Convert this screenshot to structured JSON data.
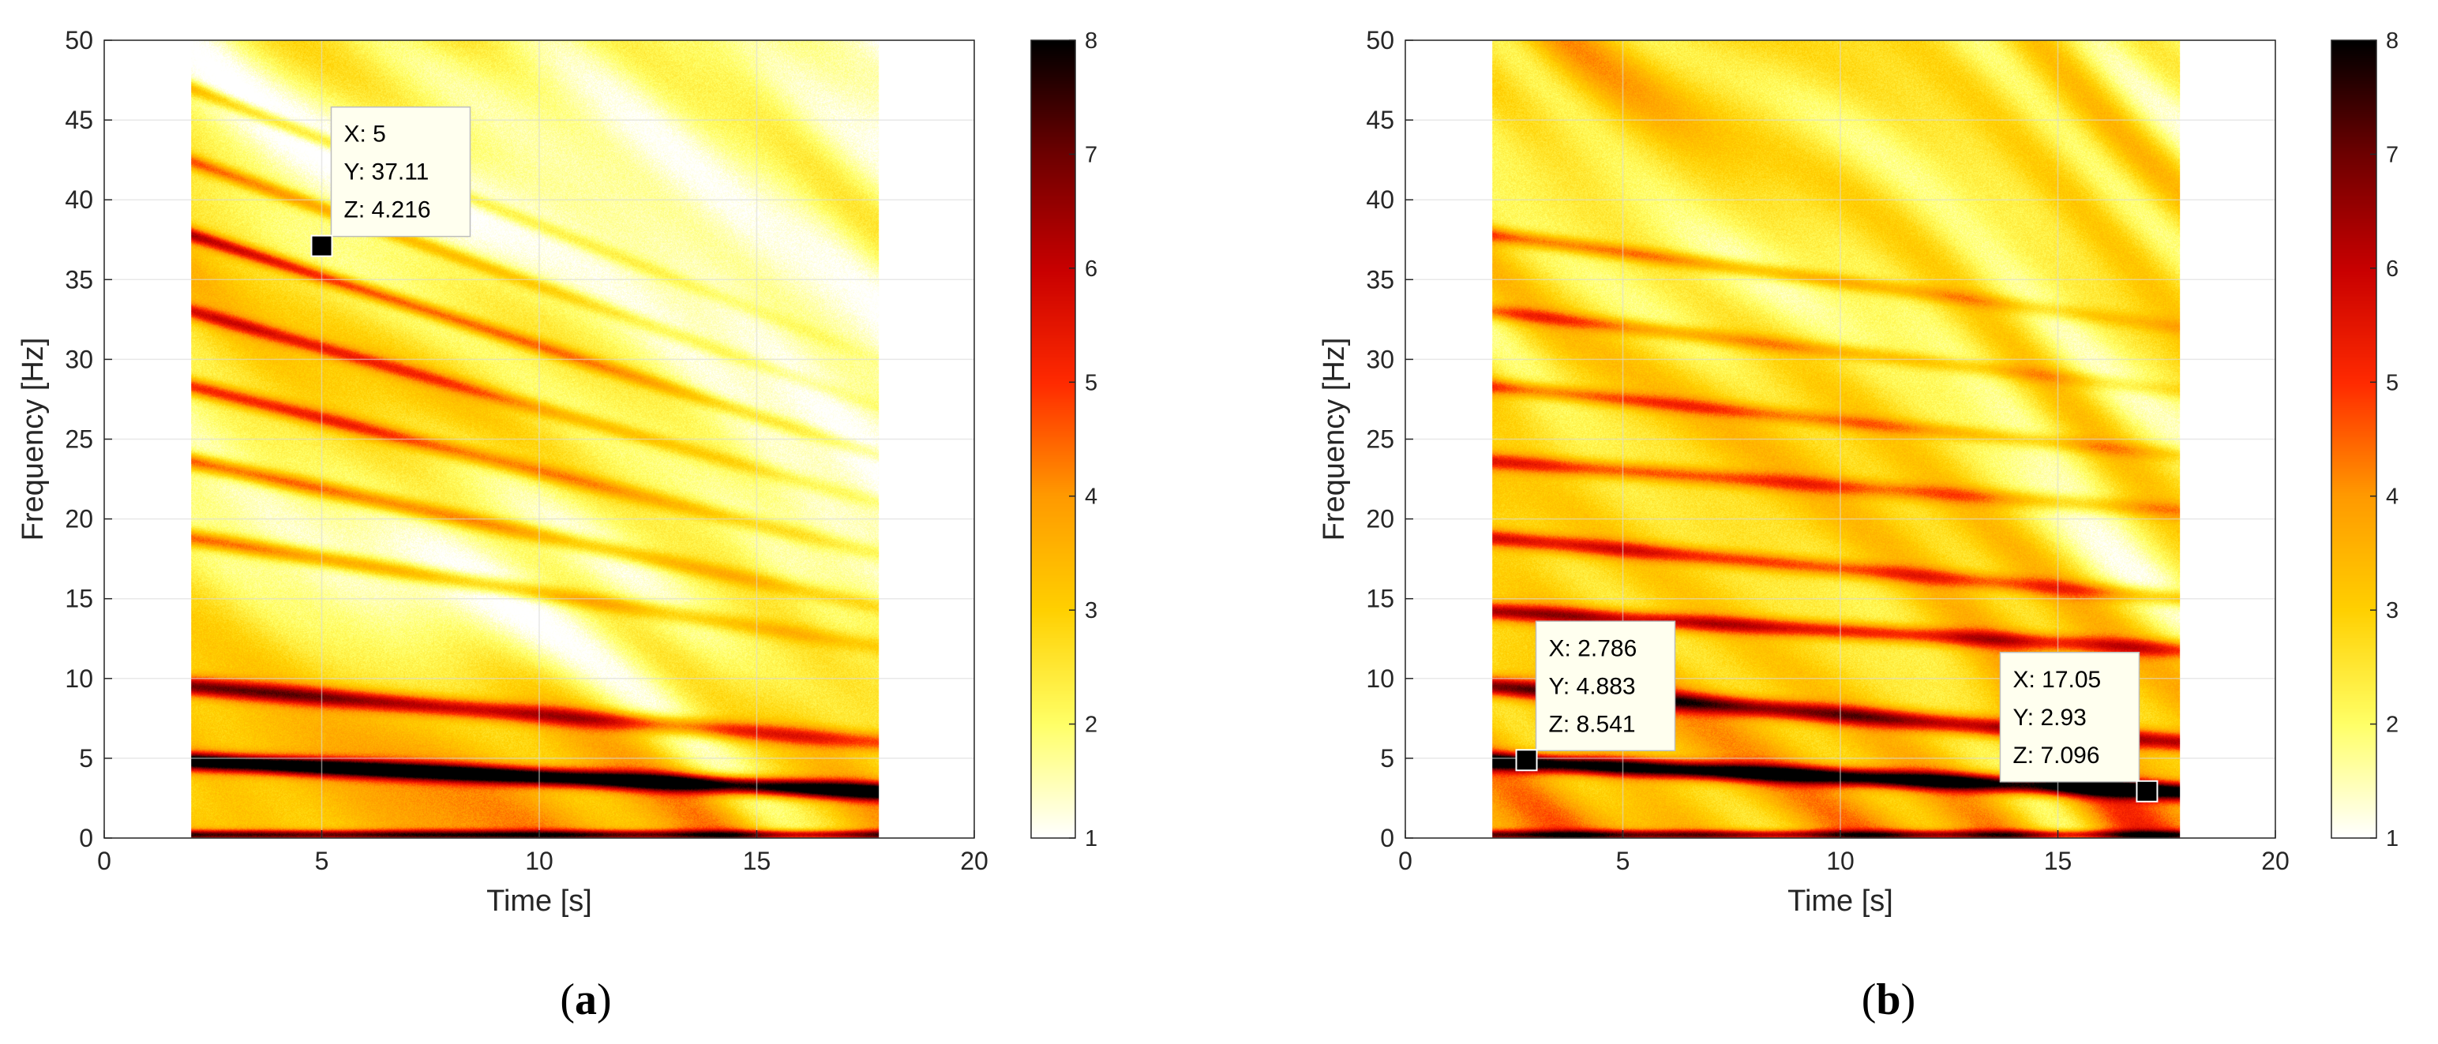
{
  "figure": {
    "captions": [
      "(a)",
      "(b)"
    ],
    "caption_letters": [
      "a",
      "b"
    ]
  },
  "chart_data": [
    {
      "type": "heatmap",
      "panel": "a",
      "xlabel": "Time [s]",
      "ylabel": "Frequency [Hz]",
      "xlim": [
        0,
        20
      ],
      "ylim": [
        0,
        50
      ],
      "xticks": [
        0,
        5,
        10,
        15,
        20
      ],
      "yticks": [
        0,
        5,
        10,
        15,
        20,
        25,
        30,
        35,
        40,
        45,
        50
      ],
      "grid": true,
      "data_extent": {
        "t_start": 2,
        "t_end": 17.8
      },
      "colormap": [
        "#ffffff",
        "#ffff66",
        "#ffd000",
        "#ff9a00",
        "#ff2a00",
        "#c80000",
        "#6e0000",
        "#000000"
      ],
      "colorbar": {
        "min": 1,
        "max": 8,
        "ticks": [
          1,
          2,
          3,
          4,
          5,
          6,
          7,
          8
        ]
      },
      "ridges": [
        {
          "t": [
            2,
            17.8
          ],
          "f": [
            4.8,
            2.9
          ],
          "z": 8.5,
          "width": 0.55,
          "fade": 0.0
        },
        {
          "t": [
            2,
            17.8
          ],
          "f": [
            9.5,
            6.0
          ],
          "z": 6.4,
          "width": 0.6,
          "fade": 0.45
        },
        {
          "t": [
            2,
            17.8
          ],
          "f": [
            18.8,
            12.0
          ],
          "z": 5.0,
          "width": 0.55,
          "fade": 0.7
        },
        {
          "t": [
            2,
            17.8
          ],
          "f": [
            23.6,
            14.5
          ],
          "z": 5.2,
          "width": 0.55,
          "fade": 0.7
        },
        {
          "t": [
            2,
            17.8
          ],
          "f": [
            28.3,
            17.8
          ],
          "z": 5.3,
          "width": 0.55,
          "fade": 0.75
        },
        {
          "t": [
            2,
            17.8
          ],
          "f": [
            33.0,
            21.0
          ],
          "z": 5.0,
          "width": 0.5,
          "fade": 0.8
        },
        {
          "t": [
            2,
            17.8
          ],
          "f": [
            37.8,
            24.0
          ],
          "z": 5.8,
          "width": 0.5,
          "fade": 0.8
        },
        {
          "t": [
            2,
            17.8
          ],
          "f": [
            42.4,
            27.0
          ],
          "z": 4.6,
          "width": 0.5,
          "fade": 0.85
        },
        {
          "t": [
            2,
            17.8
          ],
          "f": [
            47.0,
            30.0
          ],
          "z": 4.2,
          "width": 0.5,
          "fade": 0.9
        },
        {
          "t": [
            2,
            17.8
          ],
          "f": [
            0.2,
            0.2
          ],
          "z": 6.5,
          "width": 0.3,
          "fade": 0.1
        }
      ],
      "background_level": 2.3,
      "datatips": [
        {
          "x": 5,
          "y": 37.11,
          "lines": [
            "X: 5",
            "Y: 37.11",
            "Z: 4.216"
          ],
          "box_anchor": "upper-right"
        }
      ]
    },
    {
      "type": "heatmap",
      "panel": "b",
      "xlabel": "Time [s]",
      "ylabel": "Frequency [Hz]",
      "xlim": [
        0,
        20
      ],
      "ylim": [
        0,
        50
      ],
      "xticks": [
        0,
        5,
        10,
        15,
        20
      ],
      "yticks": [
        0,
        5,
        10,
        15,
        20,
        25,
        30,
        35,
        40,
        45,
        50
      ],
      "grid": true,
      "data_extent": {
        "t_start": 2,
        "t_end": 17.8
      },
      "colormap": [
        "#ffffff",
        "#ffff66",
        "#ffd000",
        "#ff9a00",
        "#ff2a00",
        "#c80000",
        "#6e0000",
        "#000000"
      ],
      "colorbar": {
        "min": 1,
        "max": 8,
        "ticks": [
          1,
          2,
          3,
          4,
          5,
          6,
          7,
          8
        ]
      },
      "ridges": [
        {
          "t": [
            2,
            17.8
          ],
          "f": [
            4.8,
            2.9
          ],
          "z": 8.5,
          "width": 0.55,
          "fade": 0.0
        },
        {
          "t": [
            2,
            17.8
          ],
          "f": [
            9.5,
            6.0
          ],
          "z": 7.0,
          "width": 0.6,
          "fade": 0.2
        },
        {
          "t": [
            2,
            17.8
          ],
          "f": [
            14.2,
            11.8
          ],
          "z": 6.2,
          "width": 0.55,
          "fade": 0.3
        },
        {
          "t": [
            2,
            17.8
          ],
          "f": [
            18.8,
            15.0
          ],
          "z": 5.6,
          "width": 0.55,
          "fade": 0.45
        },
        {
          "t": [
            2,
            17.8
          ],
          "f": [
            23.6,
            20.5
          ],
          "z": 5.2,
          "width": 0.55,
          "fade": 0.55
        },
        {
          "t": [
            2,
            17.8
          ],
          "f": [
            28.3,
            24.0
          ],
          "z": 4.9,
          "width": 0.5,
          "fade": 0.6
        },
        {
          "t": [
            2,
            17.8
          ],
          "f": [
            33.0,
            28.0
          ],
          "z": 4.7,
          "width": 0.5,
          "fade": 0.65
        },
        {
          "t": [
            2,
            17.8
          ],
          "f": [
            37.8,
            32.0
          ],
          "z": 5.0,
          "width": 0.5,
          "fade": 0.7
        },
        {
          "t": [
            2,
            17.8
          ],
          "f": [
            0.2,
            0.2
          ],
          "z": 6.5,
          "width": 0.3,
          "fade": 0.1
        }
      ],
      "background_level": 2.7,
      "datatips": [
        {
          "x": 2.786,
          "y": 4.883,
          "lines": [
            "X: 2.786",
            "Y: 4.883",
            "Z: 8.541"
          ],
          "box_anchor": "upper-right"
        },
        {
          "x": 17.05,
          "y": 2.93,
          "lines": [
            "X: 17.05",
            "Y: 2.93",
            "Z: 7.096"
          ],
          "box_anchor": "upper-left"
        }
      ]
    }
  ]
}
